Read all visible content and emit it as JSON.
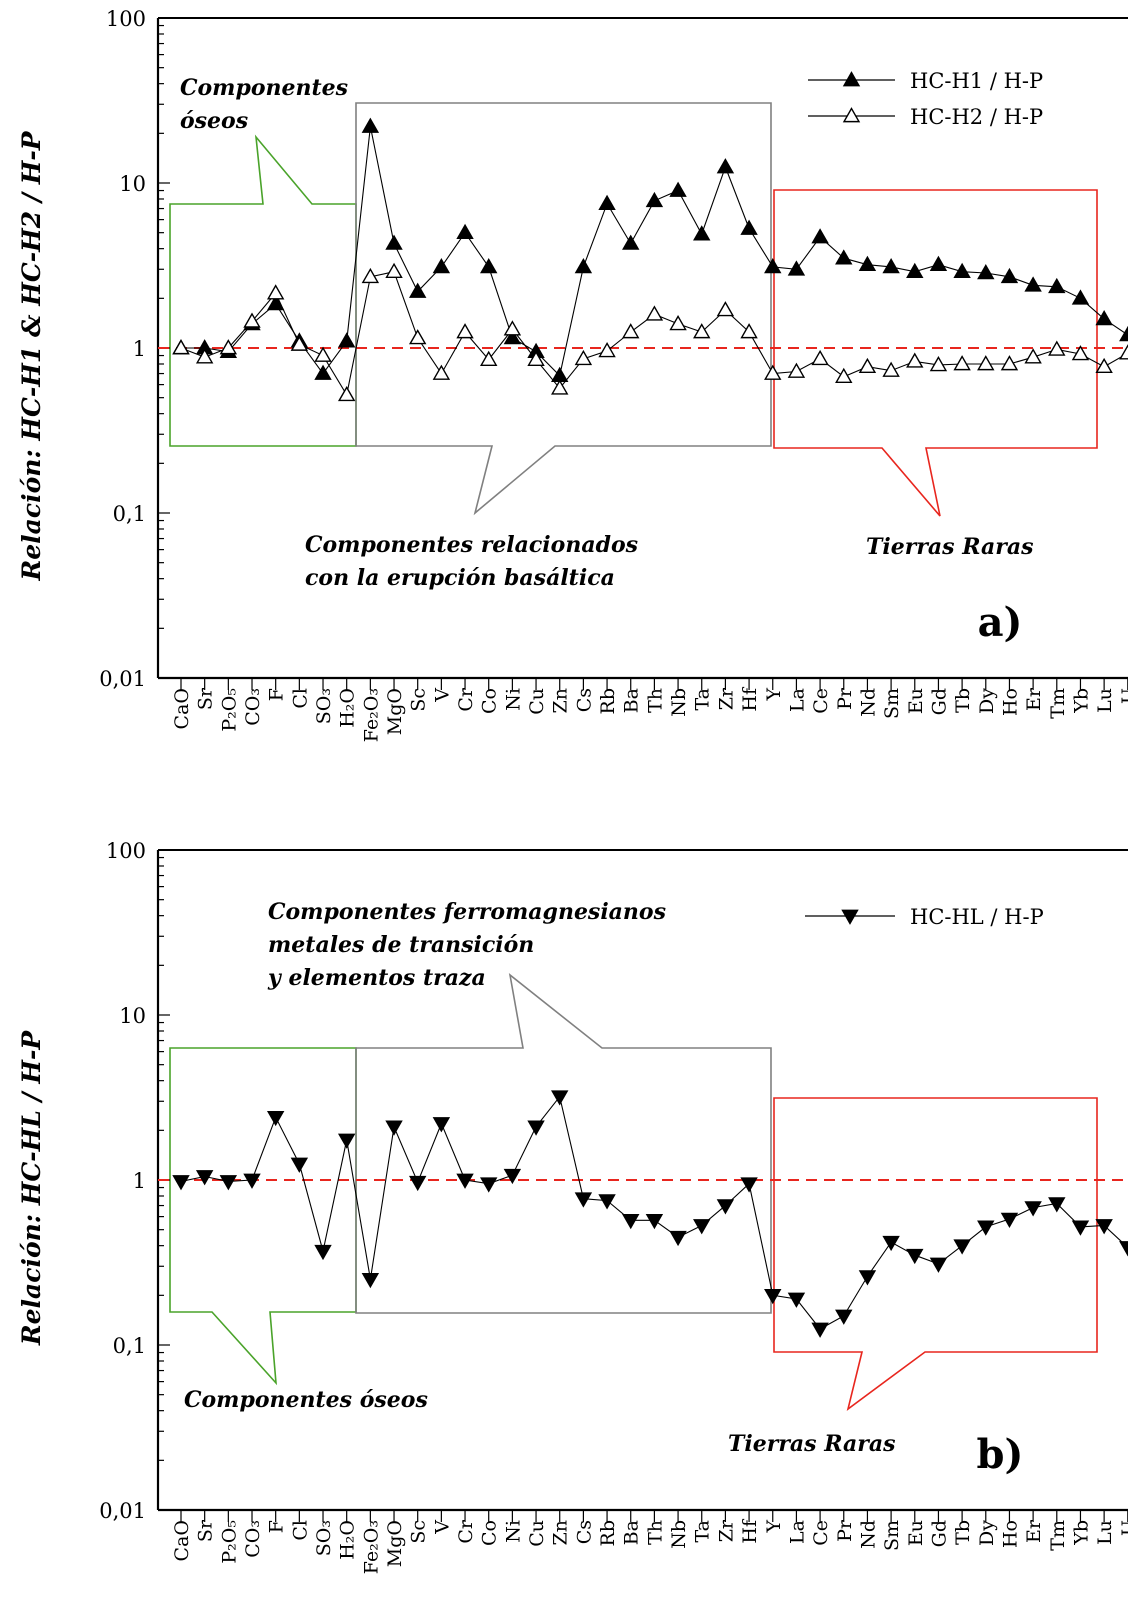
{
  "chart_data": [
    {
      "type": "line",
      "panel_label": "a)",
      "ylabel": "Relación: HC-H1 & HC-H2 / H-P",
      "y_scale": "log",
      "ylim": [
        0.01,
        100
      ],
      "yticks": [
        "0,01",
        "0,1",
        "1",
        "10",
        "100"
      ],
      "reference_line": 1,
      "categories": [
        "CaO",
        "Sr",
        "P₂O₅",
        "CO₃",
        "F",
        "Cl",
        "SO₃",
        "H₂O",
        "Fe₂O₃",
        "MgO",
        "Sc",
        "V",
        "Cr",
        "Co",
        "Ni",
        "Cu",
        "Zn",
        "Cs",
        "Rb",
        "Ba",
        "Th",
        "Nb",
        "Ta",
        "Zr",
        "Hf",
        "Y",
        "La",
        "Ce",
        "Pr",
        "Nd",
        "Sm",
        "Eu",
        "Gd",
        "Tb",
        "Dy",
        "Ho",
        "Er",
        "Tm",
        "Yb",
        "Lu",
        "U"
      ],
      "series": [
        {
          "name": "HC-H1 / H-P",
          "marker": "filled-triangle-up",
          "values": [
            1.0,
            1.0,
            0.95,
            1.4,
            1.85,
            1.1,
            0.7,
            1.1,
            22,
            4.3,
            2.2,
            3.1,
            5.0,
            3.1,
            1.15,
            0.95,
            0.68,
            3.1,
            7.5,
            4.3,
            7.8,
            9.0,
            4.9,
            12.5,
            5.3,
            3.1,
            3.0,
            4.7,
            3.5,
            3.2,
            3.1,
            2.9,
            3.2,
            2.9,
            2.85,
            2.7,
            2.4,
            2.35,
            2.0,
            1.5,
            1.2
          ]
        },
        {
          "name": "HC-H2 / H-P",
          "marker": "open-triangle-up",
          "values": [
            1.0,
            0.88,
            1.0,
            1.45,
            2.15,
            1.05,
            0.9,
            0.52,
            2.7,
            2.9,
            1.15,
            0.7,
            1.25,
            0.85,
            1.3,
            0.85,
            0.57,
            0.86,
            0.96,
            1.25,
            1.6,
            1.4,
            1.25,
            1.7,
            1.25,
            0.7,
            0.72,
            0.86,
            0.67,
            0.77,
            0.73,
            0.83,
            0.79,
            0.8,
            0.8,
            0.8,
            0.88,
            0.98,
            0.92,
            0.77,
            0.93
          ]
        }
      ],
      "legend_position": "top-right",
      "annotations": [
        {
          "text": [
            "Componentes",
            "óseos"
          ]
        },
        {
          "text": [
            "Componentes relacionados",
            "con la erupción basáltica"
          ]
        },
        {
          "text": [
            "Tierras Raras"
          ]
        }
      ]
    },
    {
      "type": "line",
      "panel_label": "b)",
      "ylabel": "Relación: HC-HL / H-P",
      "y_scale": "log",
      "ylim": [
        0.01,
        100
      ],
      "yticks": [
        "0,01",
        "0,1",
        "1",
        "10",
        "100"
      ],
      "reference_line": 1,
      "categories": [
        "CaO",
        "Sr",
        "P₂O₅",
        "CO₃",
        "F",
        "Cl",
        "SO₃",
        "H₂O",
        "Fe₂O₃",
        "MgO",
        "Sc",
        "V",
        "Cr",
        "Co",
        "Ni",
        "Cu",
        "Zn",
        "Cs",
        "Rb",
        "Ba",
        "Th",
        "Nb",
        "Ta",
        "Zr",
        "Hf",
        "Y",
        "La",
        "Ce",
        "Pr",
        "Nd",
        "Sm",
        "Eu",
        "Gd",
        "Tb",
        "Dy",
        "Ho",
        "Er",
        "Tm",
        "Yb",
        "Lu",
        "U"
      ],
      "series": [
        {
          "name": "HC-HL / H-P",
          "marker": "filled-triangle-down",
          "values": [
            0.98,
            1.05,
            0.98,
            1.0,
            2.4,
            1.25,
            0.37,
            1.75,
            0.25,
            2.1,
            0.97,
            2.2,
            1.0,
            0.95,
            1.07,
            2.1,
            3.2,
            0.77,
            0.75,
            0.57,
            0.57,
            0.45,
            0.53,
            0.7,
            0.95,
            0.2,
            0.19,
            0.125,
            0.15,
            0.26,
            0.42,
            0.35,
            0.31,
            0.4,
            0.52,
            0.58,
            0.68,
            0.72,
            0.52,
            0.53,
            0.39
          ]
        }
      ],
      "legend_position": "top-right",
      "annotations": [
        {
          "text": [
            "Componentes ferromagnesianos",
            "metales de transición",
            "y elementos traza"
          ]
        },
        {
          "text": [
            "Componentes óseos"
          ]
        },
        {
          "text": [
            "Tierras Raras"
          ]
        }
      ]
    }
  ],
  "colors": {
    "reference_line": "#e8261e",
    "green_box": "#4aa32a",
    "gray_box": "#808080",
    "red_box": "#e8261e",
    "series": "#000000"
  }
}
